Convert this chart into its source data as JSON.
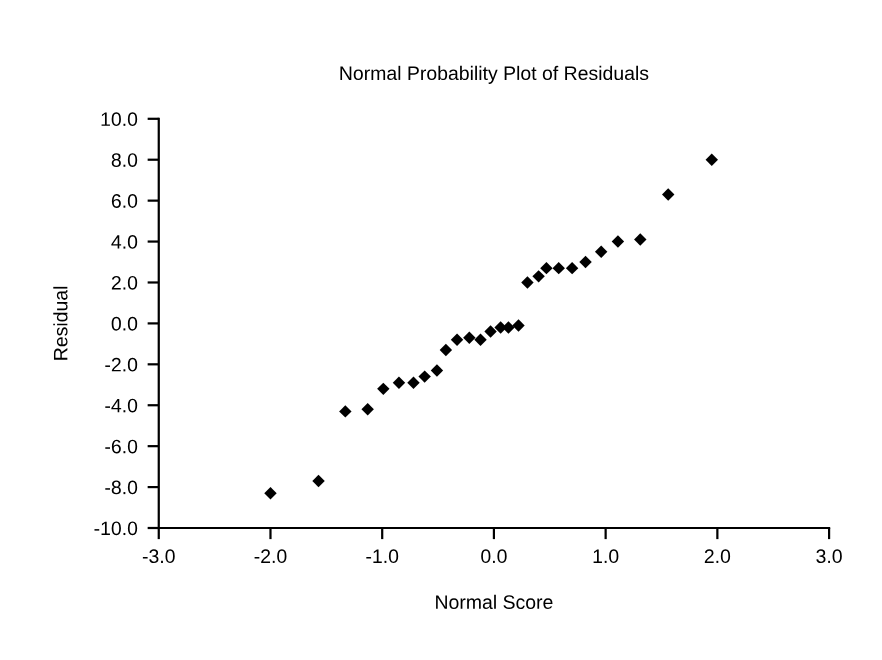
{
  "chart_data": {
    "type": "scatter",
    "title": "Normal Probability Plot of Residuals",
    "xlabel": "Normal Score",
    "ylabel": "Residual",
    "x": [
      -2.0,
      -1.57,
      -1.33,
      -1.13,
      -0.99,
      -0.85,
      -0.72,
      -0.62,
      -0.51,
      -0.43,
      -0.33,
      -0.22,
      -0.12,
      -0.03,
      0.06,
      0.13,
      0.22,
      0.3,
      0.4,
      0.47,
      0.58,
      0.7,
      0.82,
      0.96,
      1.11,
      1.31,
      1.56,
      1.95
    ],
    "values": [
      -8.3,
      -7.7,
      -4.3,
      -4.2,
      -3.2,
      -2.9,
      -2.9,
      -2.6,
      -2.3,
      -1.3,
      -0.8,
      -0.7,
      -0.8,
      -0.4,
      -0.2,
      -0.2,
      -0.1,
      2.0,
      2.3,
      2.7,
      2.7,
      2.7,
      3.0,
      3.5,
      4.0,
      4.1,
      6.3,
      8.0
    ],
    "color": "#000000",
    "marker": "diamond",
    "xlim": [
      -3,
      3
    ],
    "ylim": [
      -10,
      10
    ],
    "xticks": [
      {
        "value": -3,
        "label": "-3.0"
      },
      {
        "value": -2,
        "label": "-2.0"
      },
      {
        "value": -1,
        "label": "-1.0"
      },
      {
        "value": 0,
        "label": "0.0"
      },
      {
        "value": 1,
        "label": "1.0"
      },
      {
        "value": 2,
        "label": "2.0"
      },
      {
        "value": 3,
        "label": "3.0"
      }
    ],
    "yticks": [
      {
        "value": -10,
        "label": "-10.0"
      },
      {
        "value": -8,
        "label": "-8.0"
      },
      {
        "value": -6,
        "label": "-6.0"
      },
      {
        "value": -4,
        "label": "-4.0"
      },
      {
        "value": -2,
        "label": "-2.0"
      },
      {
        "value": 0,
        "label": "0.0"
      },
      {
        "value": 2,
        "label": "2.0"
      },
      {
        "value": 4,
        "label": "4.0"
      },
      {
        "value": 6,
        "label": "6.0"
      },
      {
        "value": 8,
        "label": "8.0"
      },
      {
        "value": 10,
        "label": "10.0"
      }
    ],
    "grid": false
  }
}
